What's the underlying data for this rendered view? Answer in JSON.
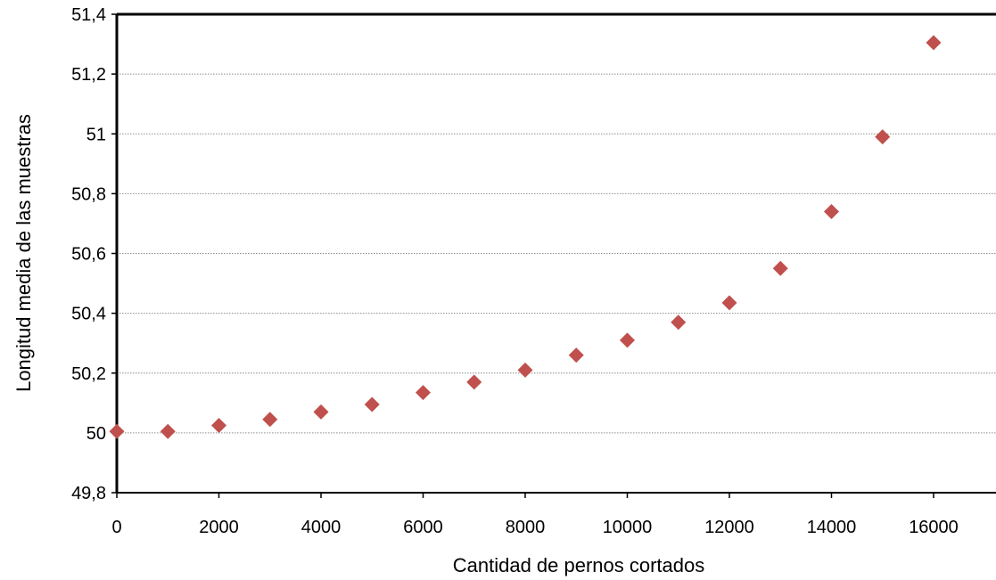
{
  "chart_data": {
    "type": "scatter",
    "title": "",
    "xlabel": "Cantidad de pernos cortados",
    "ylabel": "Longitud media de las muestras",
    "xlim": [
      0,
      17000
    ],
    "ylim": [
      49.8,
      51.4
    ],
    "x_ticks": [
      {
        "value": 0,
        "label": "0"
      },
      {
        "value": 2000,
        "label": "2000"
      },
      {
        "value": 4000,
        "label": "4000"
      },
      {
        "value": 6000,
        "label": "6000"
      },
      {
        "value": 8000,
        "label": "8000"
      },
      {
        "value": 10000,
        "label": "10000"
      },
      {
        "value": 12000,
        "label": "12000"
      },
      {
        "value": 14000,
        "label": "14000"
      },
      {
        "value": 16000,
        "label": "16000"
      }
    ],
    "y_ticks": [
      {
        "value": 49.8,
        "label": "49,8"
      },
      {
        "value": 50.0,
        "label": "50"
      },
      {
        "value": 50.2,
        "label": "50,2"
      },
      {
        "value": 50.4,
        "label": "50,4"
      },
      {
        "value": 50.6,
        "label": "50,6"
      },
      {
        "value": 50.8,
        "label": "50,8"
      },
      {
        "value": 51.0,
        "label": "51"
      },
      {
        "value": 51.2,
        "label": "51,2"
      },
      {
        "value": 51.4,
        "label": "51,4"
      }
    ],
    "grid": "horizontal dotted",
    "legend": "none",
    "marker": "diamond",
    "marker_color": "#c0504d",
    "series": [
      {
        "x": [
          0,
          1000,
          2000,
          3000,
          4000,
          5000,
          6000,
          7000,
          8000,
          9000,
          10000,
          11000,
          12000,
          13000,
          14000,
          15000,
          16000
        ],
        "y": [
          50.005,
          50.005,
          50.025,
          50.045,
          50.07,
          50.095,
          50.135,
          50.17,
          50.21,
          50.26,
          50.31,
          50.37,
          50.435,
          50.55,
          50.74,
          50.99,
          51.305
        ]
      }
    ]
  }
}
